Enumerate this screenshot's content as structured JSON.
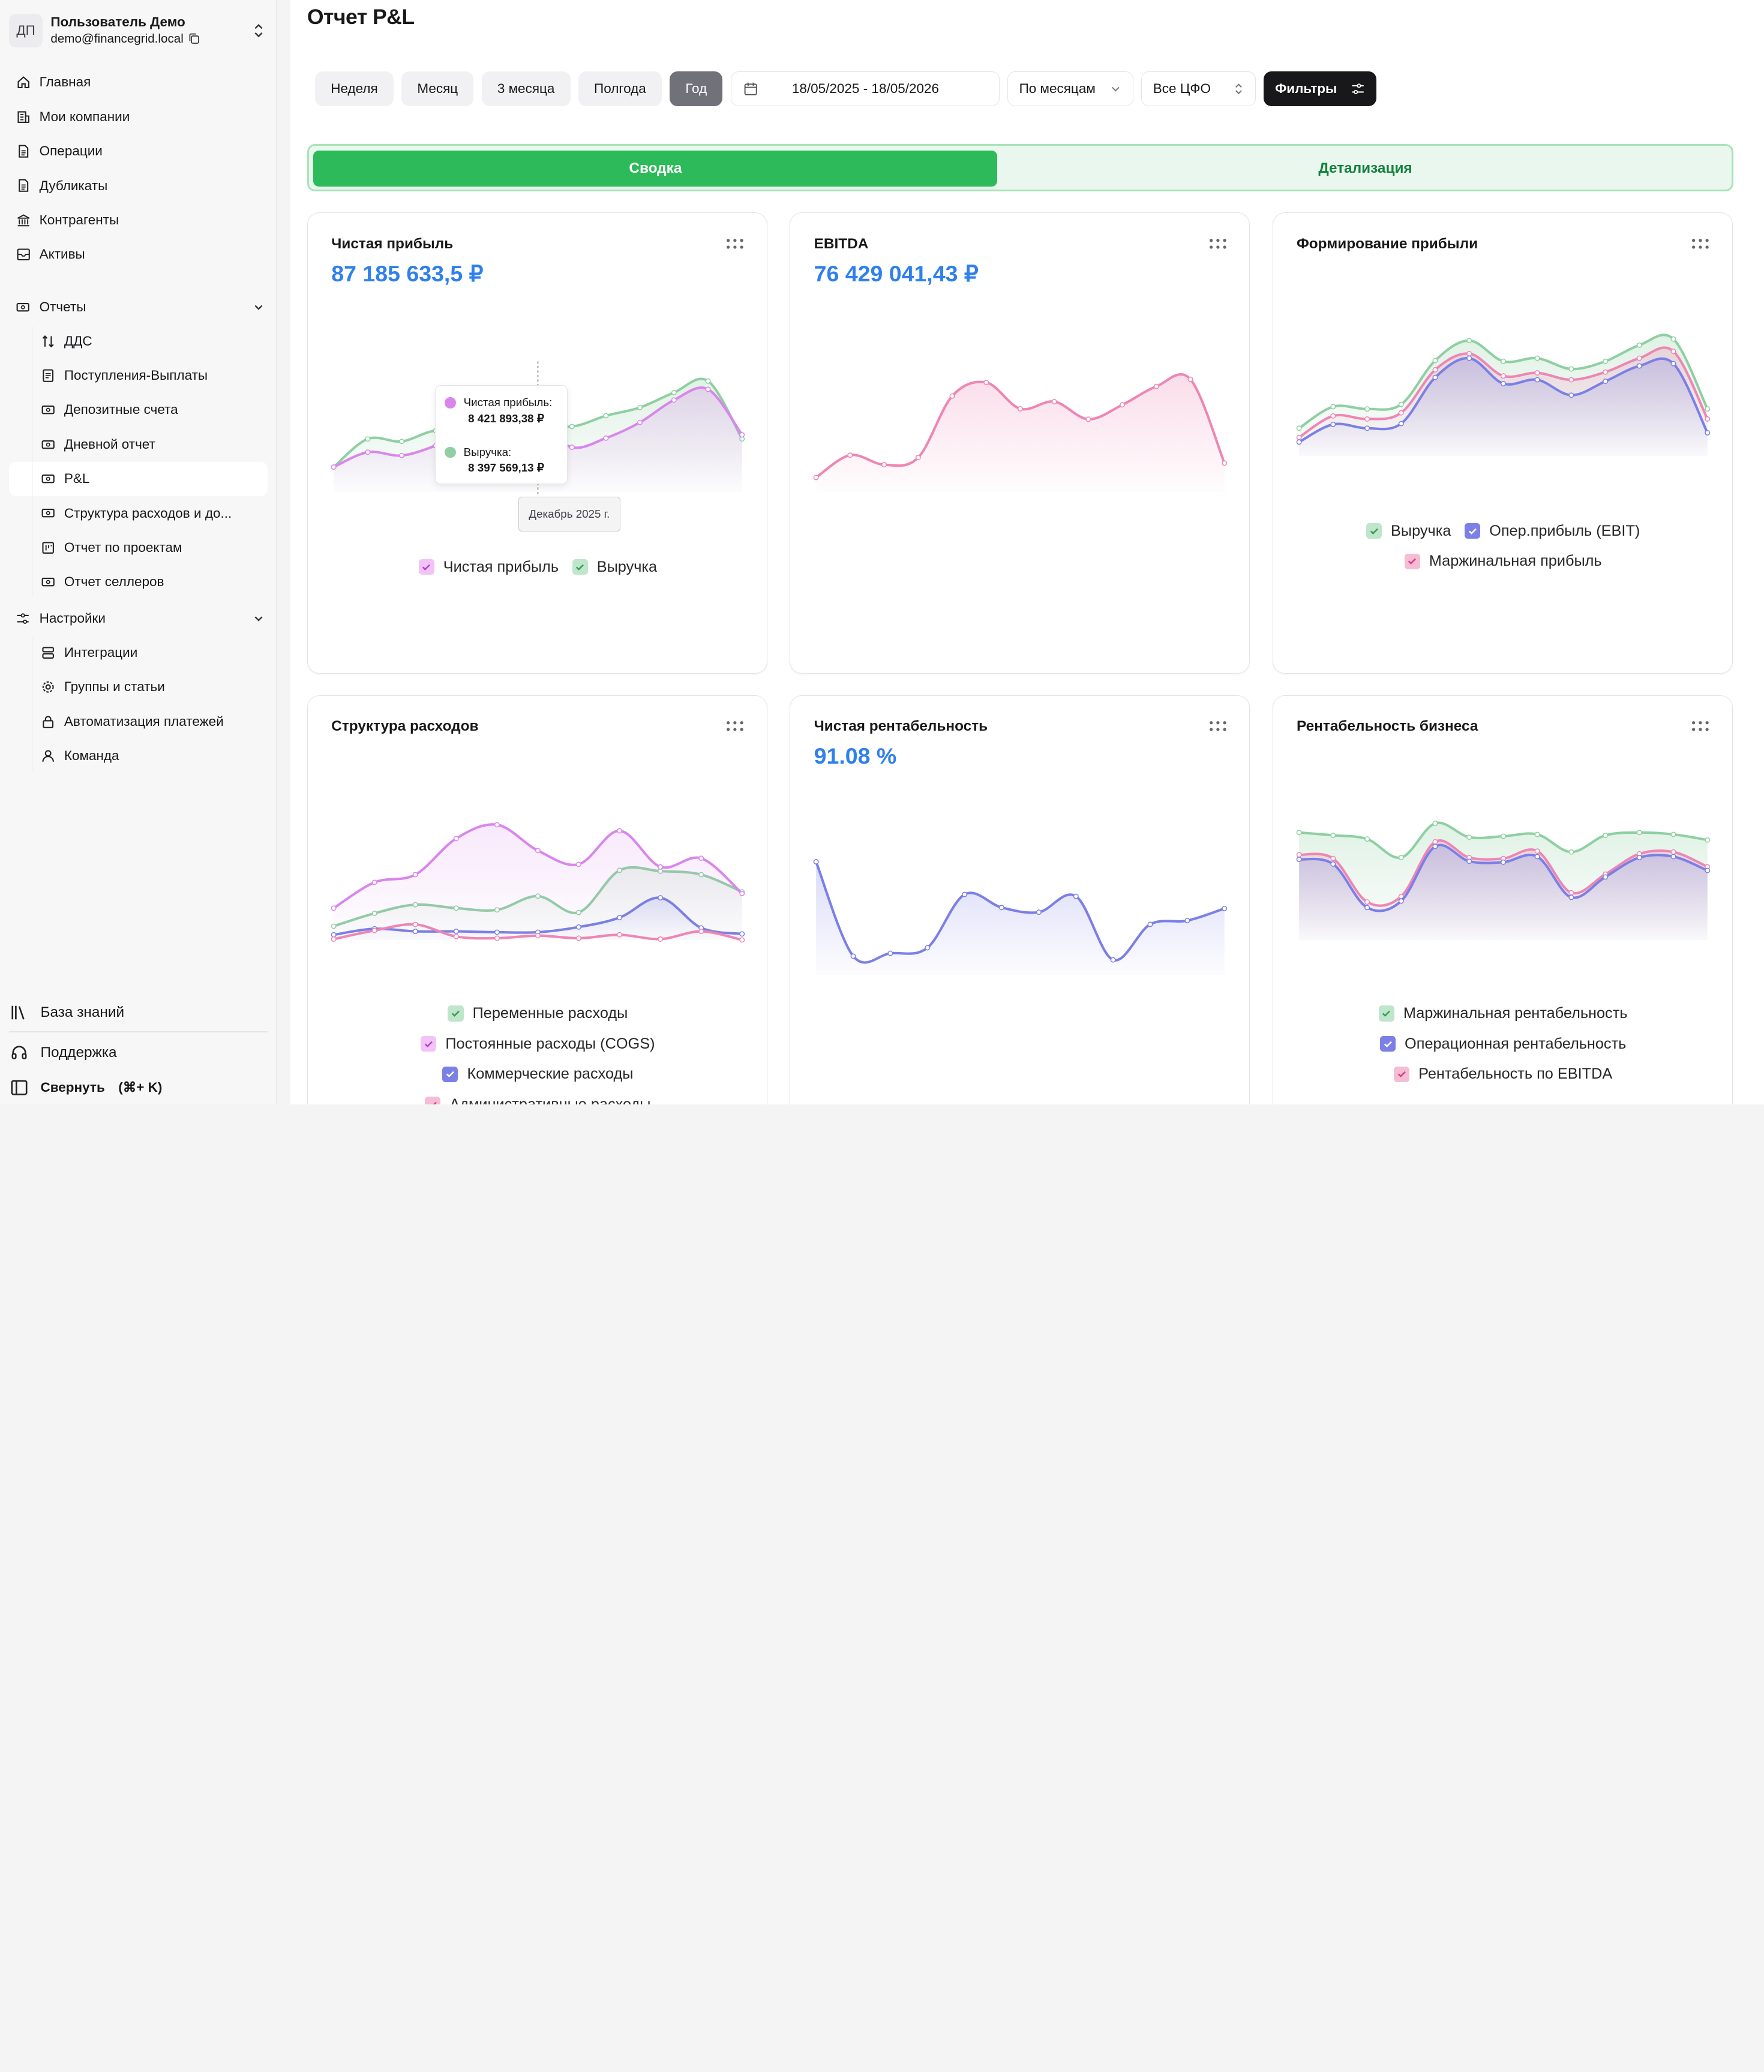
{
  "user": {
    "initials": "ДП",
    "name": "Пользователь Демо",
    "email": "demo@financegrid.local"
  },
  "sidebar": {
    "items": [
      {
        "label": "Главная",
        "icon": "home-icon"
      },
      {
        "label": "Мои компании",
        "icon": "building-icon"
      },
      {
        "label": "Операции",
        "icon": "document-icon"
      },
      {
        "label": "Дубликаты",
        "icon": "document-icon"
      },
      {
        "label": "Контрагенты",
        "icon": "bank-icon"
      },
      {
        "label": "Активы",
        "icon": "archive-icon"
      }
    ],
    "reports_label": "Отчеты",
    "reports": [
      {
        "label": "ДДС",
        "icon": "arrows-updown-icon"
      },
      {
        "label": "Поступления-Выплаты",
        "icon": "receipt-icon"
      },
      {
        "label": "Депозитные счета",
        "icon": "money-icon"
      },
      {
        "label": "Дневной отчет",
        "icon": "money-icon"
      },
      {
        "label": "P&L",
        "icon": "money-icon"
      },
      {
        "label": "Структура расходов и до...",
        "icon": "money-icon"
      },
      {
        "label": "Отчет по проектам",
        "icon": "table-icon"
      },
      {
        "label": "Отчет селлеров",
        "icon": "money-icon"
      }
    ],
    "settings_label": "Настройки",
    "settings": [
      {
        "label": "Интеграции",
        "icon": "server-icon"
      },
      {
        "label": "Группы и статьи",
        "icon": "gear-icon"
      },
      {
        "label": "Автоматизация платежей",
        "icon": "lock-icon"
      },
      {
        "label": "Команда",
        "icon": "user-icon"
      }
    ],
    "knowledge_base": "База знаний",
    "support": "Поддержка",
    "collapse": "Свернуть",
    "collapse_shortcut": "(⌘+ K)"
  },
  "page": {
    "title": "Отчет P&L"
  },
  "toolbar": {
    "periods": [
      "Неделя",
      "Месяц",
      "3 месяца",
      "Полгода",
      "Год"
    ],
    "active_period": "Год",
    "date_range": "18/05/2025 - 18/05/2026",
    "grouping": "По месяцам",
    "cfo": "Все ЦФО",
    "filters": "Фильтры"
  },
  "tabs": {
    "summary": "Сводка",
    "details": "Детализация"
  },
  "colors": {
    "green": "#8fcfa2",
    "pink": "#ee86b3",
    "purple": "#d986ec",
    "blue": "#7b7fe6",
    "accent_value": "#2f80ed",
    "tab_green": "#2dba5b"
  },
  "cards": {
    "net_profit": {
      "title": "Чистая прибыль",
      "value": "87 185 633,5 ₽",
      "legend": [
        "Чистая прибыль",
        "Выручка"
      ],
      "tooltip": {
        "label1": "Чистая прибыль:",
        "value1": "8 421 893,38 ₽",
        "label2": "Выручка:",
        "value2": "8 397 569,13 ₽",
        "xlabel": "Декабрь 2025 г."
      }
    },
    "ebitda": {
      "title": "EBITDA",
      "value": "76 429 041,43 ₽"
    },
    "profit_formation": {
      "title": "Формирование прибыли",
      "legend": [
        "Выручка",
        "Опер.прибыль (EBIT)",
        "Маржинальная прибыль"
      ]
    },
    "expense_structure": {
      "title": "Структура расходов",
      "legend": [
        "Переменные расходы",
        "Постоянные расходы (COGS)",
        "Коммерческие расходы",
        "Административные расходы"
      ]
    },
    "net_margin": {
      "title": "Чистая рентабельность",
      "value": "91.08 %"
    },
    "business_margin": {
      "title": "Рентабельность бизнеса",
      "legend": [
        "Маржинальная рентабельность",
        "Операционная рентабельность",
        "Рентабельность по EBITDA"
      ]
    }
  },
  "chart_data": [
    {
      "type": "area",
      "id": "net_profit",
      "series": [
        {
          "name": "Выручка",
          "color": "#8fcfa2",
          "values": [
            3.0,
            6.4,
            6.1,
            7.4,
            6.7,
            7.8,
            8.4,
            7.9,
            9.2,
            10.2,
            12.0,
            13.4,
            6.4
          ]
        },
        {
          "name": "Чистая прибыль",
          "color": "#d986ec",
          "values": [
            3.0,
            4.8,
            4.4,
            5.6,
            7.4,
            10.0,
            8.42,
            5.4,
            6.5,
            8.4,
            11.1,
            12.4,
            6.9
          ]
        }
      ]
    },
    {
      "type": "area",
      "id": "ebitda",
      "series": [
        {
          "name": "EBITDA",
          "color": "#ee86b3",
          "values": [
            1.8,
            4.6,
            3.4,
            4.3,
            12.0,
            13.7,
            10.4,
            11.3,
            9.1,
            10.9,
            13.2,
            14.1,
            3.6
          ]
        }
      ]
    },
    {
      "type": "area",
      "id": "profit_formation",
      "series": [
        {
          "name": "Выручка",
          "color": "#8fcfa2",
          "values": [
            3.6,
            6.4,
            6.1,
            6.7,
            12.4,
            15.0,
            12.3,
            12.7,
            11.3,
            12.3,
            14.4,
            15.2,
            6.1
          ]
        },
        {
          "name": "Маржинальная прибыль",
          "color": "#ee86b3",
          "values": [
            2.4,
            5.2,
            4.8,
            5.6,
            11.2,
            13.3,
            10.4,
            10.8,
            9.9,
            10.9,
            12.7,
            13.6,
            4.8
          ]
        },
        {
          "name": "Опер.прибыль (EBIT)",
          "color": "#7b7fe6",
          "values": [
            1.8,
            4.1,
            3.6,
            4.2,
            10.2,
            12.7,
            9.4,
            9.9,
            7.9,
            9.7,
            11.7,
            12.0,
            3.0
          ]
        }
      ]
    },
    {
      "type": "line",
      "id": "expense_structure",
      "series": [
        {
          "name": "Переменные расходы",
          "color": "#8fcfa2",
          "values": [
            1.6,
            3.1,
            4.1,
            3.7,
            3.5,
            5.1,
            3.2,
            8.1,
            8.0,
            7.6,
            5.6
          ]
        },
        {
          "name": "Постоянные расходы (COGS)",
          "color": "#d986ec",
          "values": [
            3.7,
            6.7,
            7.6,
            11.8,
            13.4,
            10.4,
            8.8,
            12.7,
            8.5,
            9.5,
            5.4
          ]
        },
        {
          "name": "Коммерческие расходы",
          "color": "#7b7fe6",
          "values": [
            0.6,
            1.3,
            1.0,
            1.0,
            0.9,
            0.9,
            1.5,
            2.6,
            4.9,
            1.4,
            0.7
          ]
        },
        {
          "name": "Административные расходы",
          "color": "#ee86b3",
          "values": [
            0.1,
            1.1,
            1.8,
            0.4,
            0.2,
            0.5,
            0.2,
            0.6,
            0.1,
            1.0,
            0.0
          ]
        }
      ]
    },
    {
      "type": "area",
      "id": "net_margin",
      "series": [
        {
          "name": "Чистая рентабельность",
          "color": "#7b7fe6",
          "values": [
            91.1,
            81.0,
            81.3,
            81.9,
            87.6,
            86.2,
            85.7,
            87.4,
            80.6,
            84.4,
            84.8,
            86.1
          ]
        }
      ]
    },
    {
      "type": "area",
      "id": "business_margin",
      "series": [
        {
          "name": "Маржинальная рентабельность",
          "color": "#8fcfa2",
          "values": [
            11.6,
            11.3,
            10.9,
            8.9,
            12.6,
            11.1,
            11.2,
            11.4,
            9.5,
            11.3,
            11.6,
            11.4,
            10.8
          ]
        },
        {
          "name": "Рентабельность по EBITDA",
          "color": "#ee86b3",
          "values": [
            9.2,
            8.8,
            4.1,
            4.7,
            10.6,
            8.9,
            8.8,
            9.6,
            5.1,
            7.1,
            9.3,
            9.5,
            7.9
          ]
        },
        {
          "name": "Операционная рентабельность",
          "color": "#7b7fe6",
          "values": [
            8.7,
            8.2,
            3.5,
            4.2,
            10.1,
            8.5,
            8.4,
            9.0,
            4.6,
            6.8,
            8.9,
            9.0,
            7.5
          ]
        }
      ]
    }
  ]
}
